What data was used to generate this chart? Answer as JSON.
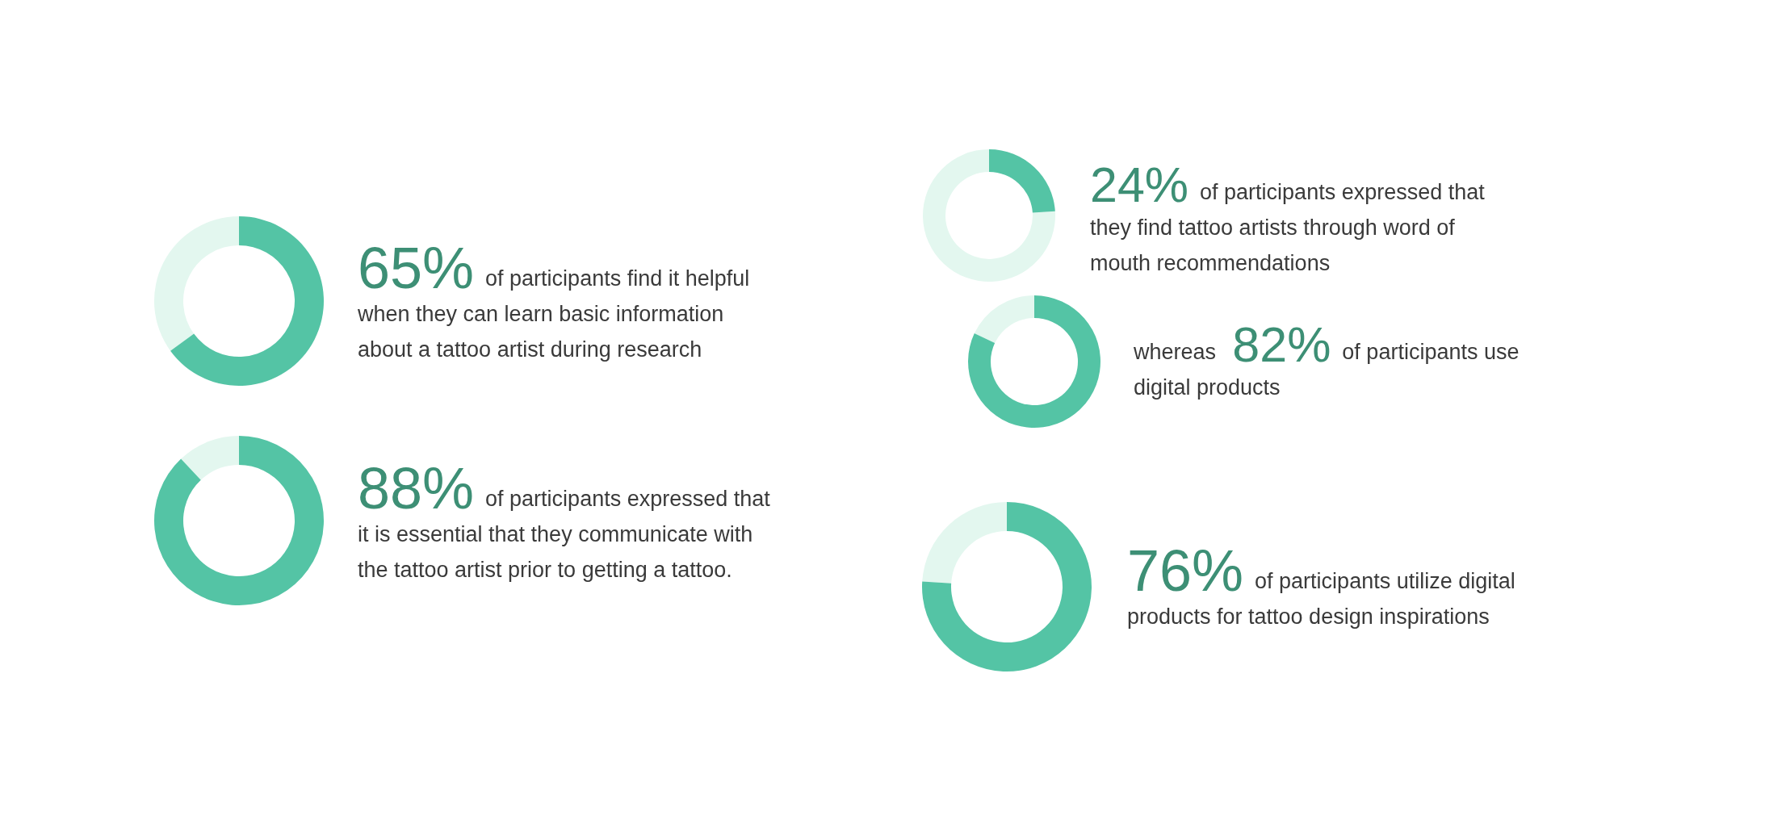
{
  "chart_data": [
    {
      "type": "donut",
      "categories": [
        null,
        null
      ],
      "values": [
        65,
        35
      ],
      "colors": [
        "#54c4a5",
        "#e3f7ef"
      ],
      "value_labels": [
        "65%",
        null
      ],
      "annotations": [
        "of participants find it helpful",
        "when they can learn basic information",
        "about a tattoo artist during research"
      ]
    },
    {
      "type": "donut",
      "categories": [
        null,
        null
      ],
      "values": [
        88,
        12
      ],
      "colors": [
        "#54c4a5",
        "#e3f7ef"
      ],
      "value_labels": [
        "88%",
        null
      ],
      "annotations": [
        "of participants expressed that",
        "it is essential that they communicate with",
        "the tattoo artist prior to getting a tattoo."
      ]
    },
    {
      "type": "donut",
      "categories": [
        null,
        null
      ],
      "values": [
        24,
        76
      ],
      "colors": [
        "#54c4a5",
        "#e3f7ef"
      ],
      "value_labels": [
        "24%",
        null
      ],
      "annotations": [
        "of participants expressed that",
        "they find tattoo artists through word of",
        "mouth recommendations"
      ]
    },
    {
      "type": "donut",
      "categories": [
        null,
        null
      ],
      "values": [
        82,
        18
      ],
      "colors": [
        "#54c4a5",
        "#e3f7ef"
      ],
      "value_labels": [
        "82%",
        null
      ],
      "subtitle": "whereas",
      "annotations": [
        "of participants use",
        "digital products"
      ]
    },
    {
      "type": "donut",
      "categories": [
        null,
        null
      ],
      "values": [
        76,
        24
      ],
      "colors": [
        "#54c4a5",
        "#e3f7ef"
      ],
      "value_labels": [
        "76%",
        null
      ],
      "annotations": [
        "of participants utilize digital",
        "products for tattoo design inspirations"
      ]
    }
  ]
}
